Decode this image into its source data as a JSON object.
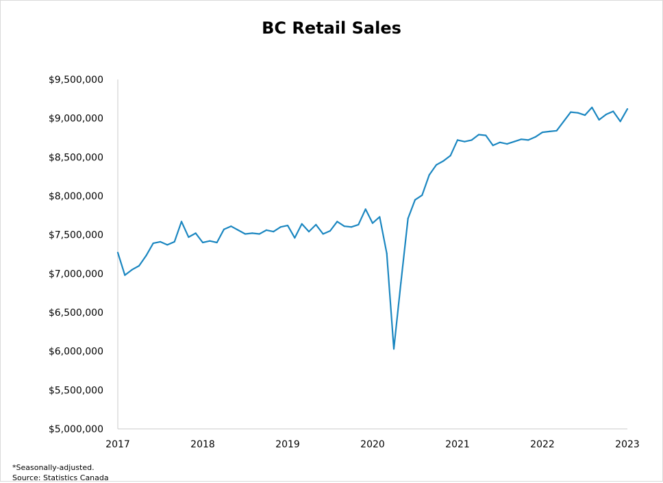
{
  "chart_data": {
    "type": "line",
    "title": "BC Retail Sales",
    "xlabel": "",
    "ylabel": "",
    "ylim": [
      5000000,
      9500000
    ],
    "xlim": [
      2017,
      2023
    ],
    "y_ticks": [
      "$5,000,000",
      "$5,500,000",
      "$6,000,000",
      "$6,500,000",
      "$7,000,000",
      "$7,500,000",
      "$8,000,000",
      "$8,500,000",
      "$9,000,000",
      "$9,500,000"
    ],
    "y_tick_values": [
      5000000,
      5500000,
      6000000,
      6500000,
      7000000,
      7500000,
      8000000,
      8500000,
      9000000,
      9500000
    ],
    "x_ticks": [
      "2017",
      "2018",
      "2019",
      "2020",
      "2021",
      "2022",
      "2023"
    ],
    "x_tick_values": [
      2017,
      2018,
      2019,
      2020,
      2021,
      2022,
      2023
    ],
    "grid": false,
    "line_color": "#1a86c0",
    "series": [
      {
        "name": "",
        "x": [
          "2017-01",
          "2017-02",
          "2017-03",
          "2017-04",
          "2017-05",
          "2017-06",
          "2017-07",
          "2017-08",
          "2017-09",
          "2017-10",
          "2017-11",
          "2017-12",
          "2018-01",
          "2018-02",
          "2018-03",
          "2018-04",
          "2018-05",
          "2018-06",
          "2018-07",
          "2018-08",
          "2018-09",
          "2018-10",
          "2018-11",
          "2018-12",
          "2019-01",
          "2019-02",
          "2019-03",
          "2019-04",
          "2019-05",
          "2019-06",
          "2019-07",
          "2019-08",
          "2019-09",
          "2019-10",
          "2019-11",
          "2019-12",
          "2020-01",
          "2020-02",
          "2020-03",
          "2020-04",
          "2020-05",
          "2020-06",
          "2020-07",
          "2020-08",
          "2020-09",
          "2020-10",
          "2020-11",
          "2020-12",
          "2021-01",
          "2021-02",
          "2021-03",
          "2021-04",
          "2021-05",
          "2021-06",
          "2021-07",
          "2021-08",
          "2021-09",
          "2021-10",
          "2021-11",
          "2021-12",
          "2022-01",
          "2022-02",
          "2022-03",
          "2022-04",
          "2022-05",
          "2022-06",
          "2022-07",
          "2022-08",
          "2022-09",
          "2022-10",
          "2022-11",
          "2022-12",
          "2023-01"
        ],
        "values": [
          7270000,
          6980000,
          7050000,
          7100000,
          7230000,
          7390000,
          7410000,
          7370000,
          7410000,
          7670000,
          7470000,
          7520000,
          7400000,
          7420000,
          7400000,
          7570000,
          7610000,
          7560000,
          7510000,
          7520000,
          7510000,
          7560000,
          7540000,
          7600000,
          7620000,
          7460000,
          7640000,
          7540000,
          7630000,
          7510000,
          7550000,
          7670000,
          7610000,
          7600000,
          7630000,
          7830000,
          7650000,
          7730000,
          7260000,
          6030000,
          6880000,
          7710000,
          7950000,
          8010000,
          8270000,
          8400000,
          8450000,
          8520000,
          8720000,
          8700000,
          8720000,
          8790000,
          8780000,
          8650000,
          8690000,
          8670000,
          8700000,
          8730000,
          8720000,
          8760000,
          8820000,
          8830000,
          8840000,
          8960000,
          9080000,
          9070000,
          9040000,
          9140000,
          8980000,
          9050000,
          9090000,
          8960000,
          9120000
        ]
      }
    ]
  },
  "footnotes": {
    "note": "*Seasonally-adjusted.",
    "source": "Source: Statistics Canada"
  }
}
